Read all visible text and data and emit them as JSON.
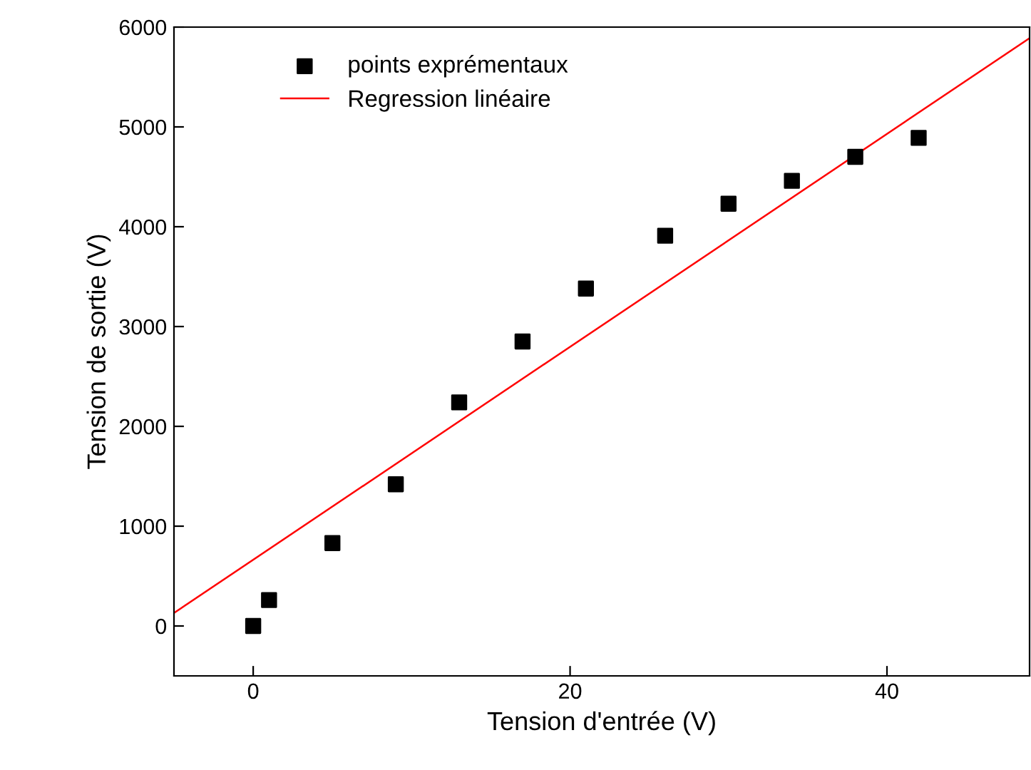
{
  "chart_data": {
    "type": "scatter",
    "xlabel": "Tension d'entrée (V)",
    "ylabel": "Tension de sortie (V)",
    "xlim": [
      -5,
      49
    ],
    "ylim": [
      -500,
      6000
    ],
    "xticks": [
      0,
      20,
      40
    ],
    "yticks": [
      0,
      1000,
      2000,
      3000,
      4000,
      5000,
      6000
    ],
    "grid": false,
    "legend": "top left",
    "series": [
      {
        "name": "points exprémentaux",
        "marker": "square",
        "color": "#000000",
        "x": [
          0,
          1,
          5,
          9,
          13,
          17,
          21,
          26,
          30,
          34,
          38,
          42
        ],
        "values": [
          0,
          260,
          830,
          1420,
          2240,
          2850,
          3380,
          3910,
          4230,
          4460,
          4700,
          4890
        ]
      },
      {
        "name": "Regression linéaire",
        "type": "line",
        "color": "#ff0000",
        "line_style": "solid",
        "x": [
          -5,
          49
        ],
        "values": [
          130,
          5890
        ]
      }
    ]
  }
}
